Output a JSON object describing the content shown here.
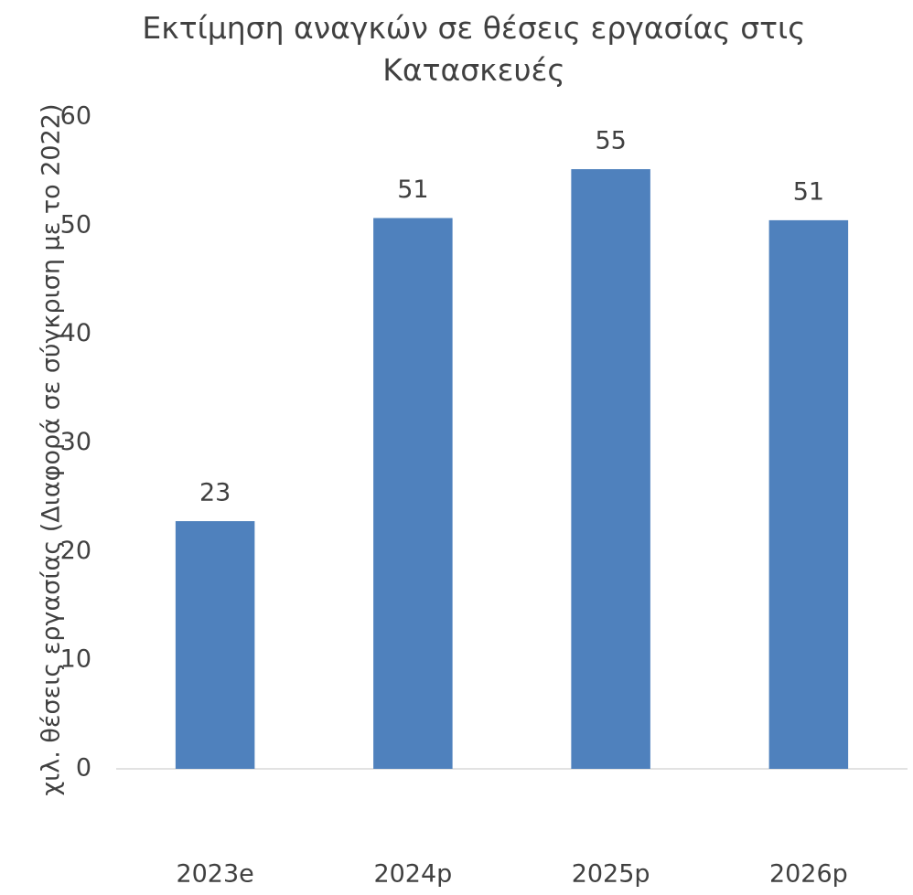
{
  "chart_data": {
    "type": "bar",
    "title": "Εκτίμηση αναγκών σε θέσεις εργασίας στις Κατασκευές",
    "y_label": "χιλ. θέσεις εργασίας (Διαφορά σε σύγκριση με το 2022)",
    "categories": [
      "2023e",
      "2024p",
      "2025p",
      "2026p"
    ],
    "values": [
      22.8,
      50.7,
      55.2,
      50.5
    ],
    "value_labels": [
      "23",
      "51",
      "55",
      "51"
    ],
    "color": "#4f81bd",
    "ylim": [
      0,
      60
    ],
    "yticks": [
      0,
      10,
      20,
      30,
      40,
      50,
      60
    ],
    "grid": false
  }
}
